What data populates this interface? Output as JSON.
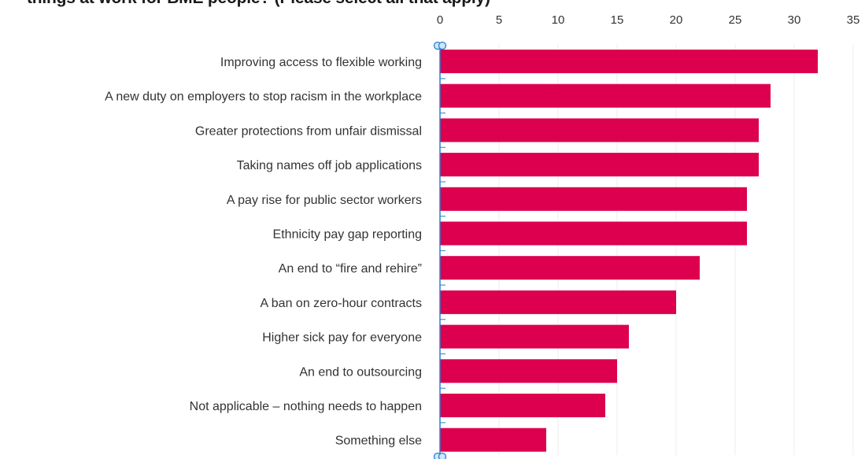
{
  "chart_data": {
    "type": "bar",
    "orientation": "horizontal",
    "title": "things at work for BME people? (Please select all that apply)",
    "categories": [
      "Improving access to flexible working",
      "A new duty on employers to stop racism in the workplace",
      "Greater protections from unfair dismissal",
      "Taking names off job applications",
      "A pay rise for public sector workers",
      "Ethnicity pay gap reporting",
      "An end to “fire and rehire”",
      "A ban on zero-hour contracts",
      "Higher sick pay for everyone",
      "An end to outsourcing",
      "Not applicable – nothing needs to happen",
      "Something else"
    ],
    "values": [
      32,
      28,
      27,
      27,
      26,
      26,
      22,
      20,
      16,
      15,
      14,
      9
    ],
    "xlim": [
      0,
      35
    ],
    "xticks": [
      0,
      5,
      10,
      15,
      20,
      25,
      30,
      35
    ],
    "tick_position": "top",
    "grid": true,
    "bar_color": "#dc004e",
    "axis_color": "#2b7fd0",
    "grid_color": "#ececec"
  }
}
